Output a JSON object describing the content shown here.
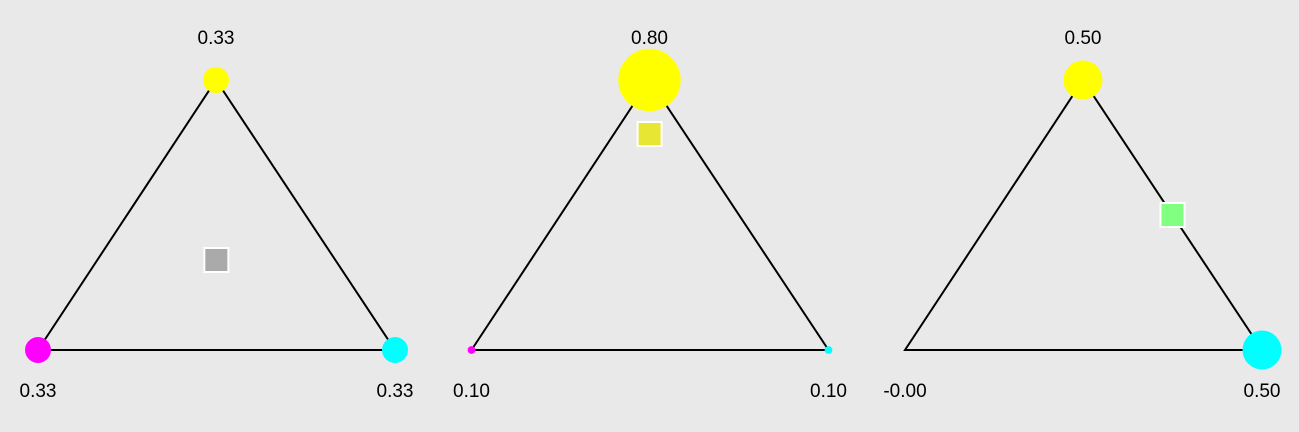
{
  "vertex_colors": [
    "#ff00ff",
    "#ffff00",
    "#00ffff"
  ],
  "panels": [
    {
      "weights": [
        {
          "value": 0.333,
          "label": "0.33"
        },
        {
          "value": 0.333,
          "label": "0.33"
        },
        {
          "value": 0.333,
          "label": "0.33"
        }
      ]
    },
    {
      "weights": [
        {
          "value": 0.1,
          "label": "0.10"
        },
        {
          "value": 0.8,
          "label": "0.80"
        },
        {
          "value": 0.1,
          "label": "0.10"
        }
      ]
    },
    {
      "weights": [
        {
          "value": 0,
          "label": "-0.00"
        },
        {
          "value": 0.5,
          "label": "0.50"
        },
        {
          "value": 0.5,
          "label": "0.50"
        }
      ]
    }
  ]
}
